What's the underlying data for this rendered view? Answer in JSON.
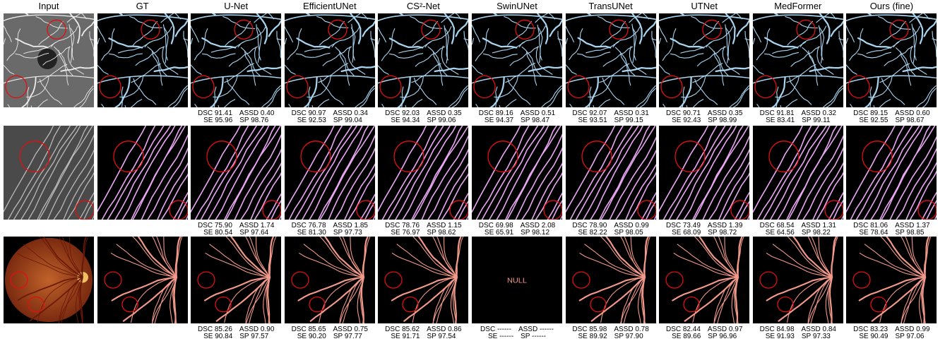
{
  "columns": [
    "Input",
    "GT",
    "U-Net",
    "EfficientUNet",
    "CS²-Net",
    "SwinUNet",
    "TransUNet",
    "UTNet",
    "MedFormer",
    "Ours (fine)"
  ],
  "metric_labels": {
    "dsc": "DSC",
    "assd": "ASSD",
    "se": "SE",
    "sp": "SP"
  },
  "rows": [
    {
      "cells": [
        {
          "dsc": "91.41",
          "assd": "0.40",
          "se": "95.96",
          "sp": "98.76"
        },
        {
          "dsc": "90.97",
          "assd": "0.34",
          "se": "92.53",
          "sp": "99.04"
        },
        {
          "dsc": "92.03",
          "assd": "0.35",
          "se": "94.34",
          "sp": "99.06"
        },
        {
          "dsc": "89.16",
          "assd": "0.51",
          "se": "94.37",
          "sp": "98.47"
        },
        {
          "dsc": "92.07",
          "assd": "0.31",
          "se": "93.51",
          "sp": "99.15"
        },
        {
          "dsc": "90.71",
          "assd": "0.35",
          "se": "92.43",
          "sp": "98.99"
        },
        {
          "dsc": "91.81",
          "assd": "0.32",
          "se": "83.41",
          "sp": "99.11"
        },
        {
          "dsc": "89.15",
          "assd": "0.60",
          "se": "92.55",
          "sp": "98.67"
        }
      ]
    },
    {
      "cells": [
        {
          "dsc": "75.90",
          "assd": "1.74",
          "se": "80.54",
          "sp": "97.64"
        },
        {
          "dsc": "76.78",
          "assd": "1.85",
          "se": "81.30",
          "sp": "97.73"
        },
        {
          "dsc": "78.76",
          "assd": "1.15",
          "se": "76.97",
          "sp": "98.62"
        },
        {
          "dsc": "69.98",
          "assd": "2.08",
          "se": "65.91",
          "sp": "98.12"
        },
        {
          "dsc": "78.90",
          "assd": "0.99",
          "se": "82.22",
          "sp": "98.05"
        },
        {
          "dsc": "73.49",
          "assd": "1.39",
          "se": "68.09",
          "sp": "98.72"
        },
        {
          "dsc": "68.54",
          "assd": "1.31",
          "se": "64.56",
          "sp": "98.22"
        },
        {
          "dsc": "81.06",
          "assd": "1.37",
          "se": "78.64",
          "sp": "98.85"
        }
      ]
    },
    {
      "cells": [
        {
          "dsc": "85.26",
          "assd": "0.90",
          "se": "90.84",
          "sp": "97.57"
        },
        {
          "dsc": "85.65",
          "assd": "0.75",
          "se": "90.20",
          "sp": "97.77"
        },
        {
          "dsc": "85.62",
          "assd": "0.86",
          "se": "91.71",
          "sp": "97.54"
        },
        {
          "dsc": "------",
          "assd": "------",
          "se": "------",
          "sp": "------",
          "image_text": "NULL"
        },
        {
          "dsc": "85.98",
          "assd": "0.78",
          "se": "89.92",
          "sp": "97.90"
        },
        {
          "dsc": "82.44",
          "assd": "0.97",
          "se": "89.66",
          "sp": "96.96"
        },
        {
          "dsc": "84.98",
          "assd": "0.84",
          "se": "91.93",
          "sp": "97.33"
        },
        {
          "dsc": "83.23",
          "assd": "0.99",
          "se": "90.49",
          "sp": "97.06"
        }
      ]
    }
  ]
}
